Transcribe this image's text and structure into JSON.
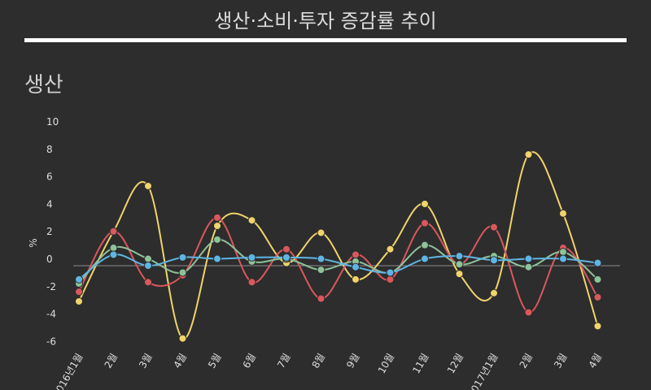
{
  "header": {
    "title": "생산·소비·투자 증감률 추이"
  },
  "section": {
    "title": "생산"
  },
  "chart_data": {
    "type": "line",
    "ylabel": "%",
    "ylim": [
      -6,
      10
    ],
    "yticks": [
      -6,
      -4,
      -2,
      0,
      2,
      4,
      6,
      8,
      10
    ],
    "categories": [
      "2016년1월",
      "2월",
      "3월",
      "4월",
      "5월",
      "6월",
      "7월",
      "8월",
      "9월",
      "10월",
      "11월",
      "12월",
      "2017년1월",
      "2월",
      "3월",
      "4월"
    ],
    "series": [
      {
        "color": "#f0d36b",
        "values": [
          -2.6,
          2.5,
          5.8,
          -5.3,
          2.9,
          3.3,
          0.2,
          2.4,
          -1.0,
          1.2,
          4.5,
          -0.6,
          -2.0,
          8.1,
          3.8,
          -4.4
        ]
      },
      {
        "color": "#d9585d",
        "values": [
          -1.9,
          2.5,
          -1.2,
          -0.7,
          3.5,
          -1.2,
          1.2,
          -2.4,
          0.8,
          -1.0,
          3.1,
          0.1,
          2.8,
          -3.4,
          1.3,
          -2.3
        ]
      },
      {
        "color": "#8ec29a",
        "values": [
          -1.3,
          1.3,
          0.5,
          -0.5,
          1.9,
          0.3,
          0.5,
          -0.3,
          0.3,
          -0.5,
          1.5,
          0.1,
          0.7,
          -0.1,
          1.0,
          -1.0
        ]
      },
      {
        "color": "#5fb5e3",
        "values": [
          -1.0,
          0.8,
          0.0,
          0.6,
          0.5,
          0.6,
          0.6,
          0.5,
          -0.1,
          -0.5,
          0.5,
          0.7,
          0.4,
          0.5,
          0.5,
          0.2
        ]
      }
    ]
  }
}
